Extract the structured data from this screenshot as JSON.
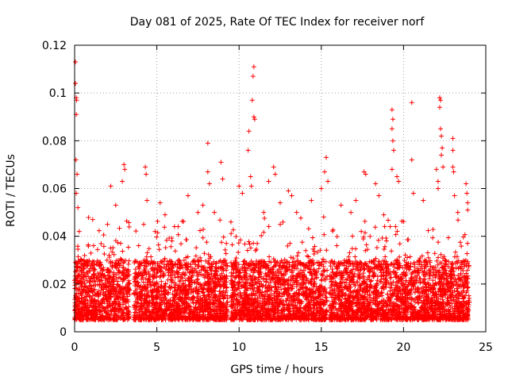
{
  "chart_data": {
    "type": "scatter",
    "title": "Day 081 of 2025, Rate Of TEC Index for receiver norf",
    "xlabel": "GPS time / hours",
    "ylabel": "ROTI / TECUs",
    "xlim": [
      0,
      25
    ],
    "ylim": [
      0,
      0.12
    ],
    "xticks": [
      0,
      5,
      10,
      15,
      20,
      25
    ],
    "yticks": [
      0,
      0.02,
      0.04,
      0.06,
      0.08,
      0.1,
      0.12
    ],
    "xtick_labels": [
      "0",
      "5",
      "10",
      "15",
      "20",
      "25"
    ],
    "ytick_labels": [
      "0",
      "0.02",
      "0.04",
      "0.06",
      "0.08",
      "0.1",
      "0.12"
    ],
    "grid": true,
    "marker": "+",
    "color": "#ff0000",
    "density_profile": {
      "description": "Dense cloud of points mostly between 0.005 and 0.03 TECU/s over data segments, with sparse outliers",
      "data_segments_hours": [
        [
          0.0,
          3.35
        ],
        [
          3.6,
          9.3
        ],
        [
          9.5,
          15.35
        ],
        [
          15.5,
          24.0
        ]
      ],
      "baseline_range": [
        0.005,
        0.03
      ]
    },
    "outliers": [
      {
        "x": 0.05,
        "y": 0.113
      },
      {
        "x": 0.05,
        "y": 0.104
      },
      {
        "x": 0.1,
        "y": 0.098
      },
      {
        "x": 0.12,
        "y": 0.097
      },
      {
        "x": 0.1,
        "y": 0.091
      },
      {
        "x": 0.08,
        "y": 0.072
      },
      {
        "x": 0.15,
        "y": 0.066
      },
      {
        "x": 0.1,
        "y": 0.058
      },
      {
        "x": 0.2,
        "y": 0.052
      },
      {
        "x": 1.1,
        "y": 0.047
      },
      {
        "x": 2.0,
        "y": 0.045
      },
      {
        "x": 2.2,
        "y": 0.061
      },
      {
        "x": 2.5,
        "y": 0.053
      },
      {
        "x": 2.9,
        "y": 0.063
      },
      {
        "x": 3.0,
        "y": 0.07
      },
      {
        "x": 3.05,
        "y": 0.068
      },
      {
        "x": 4.2,
        "y": 0.045
      },
      {
        "x": 4.3,
        "y": 0.069
      },
      {
        "x": 4.35,
        "y": 0.066
      },
      {
        "x": 4.4,
        "y": 0.055
      },
      {
        "x": 5.2,
        "y": 0.054
      },
      {
        "x": 5.5,
        "y": 0.049
      },
      {
        "x": 6.9,
        "y": 0.057
      },
      {
        "x": 7.5,
        "y": 0.05
      },
      {
        "x": 7.8,
        "y": 0.053
      },
      {
        "x": 8.1,
        "y": 0.079
      },
      {
        "x": 8.1,
        "y": 0.067
      },
      {
        "x": 8.2,
        "y": 0.062
      },
      {
        "x": 8.5,
        "y": 0.05
      },
      {
        "x": 8.9,
        "y": 0.071
      },
      {
        "x": 9.0,
        "y": 0.064
      },
      {
        "x": 10.0,
        "y": 0.061
      },
      {
        "x": 10.2,
        "y": 0.058
      },
      {
        "x": 10.6,
        "y": 0.084
      },
      {
        "x": 10.55,
        "y": 0.076
      },
      {
        "x": 10.7,
        "y": 0.065
      },
      {
        "x": 10.75,
        "y": 0.061
      },
      {
        "x": 10.9,
        "y": 0.111
      },
      {
        "x": 10.85,
        "y": 0.107
      },
      {
        "x": 10.8,
        "y": 0.097
      },
      {
        "x": 10.9,
        "y": 0.09
      },
      {
        "x": 10.95,
        "y": 0.089
      },
      {
        "x": 11.5,
        "y": 0.05
      },
      {
        "x": 11.8,
        "y": 0.063
      },
      {
        "x": 12.1,
        "y": 0.069
      },
      {
        "x": 12.2,
        "y": 0.066
      },
      {
        "x": 12.5,
        "y": 0.054
      },
      {
        "x": 13.0,
        "y": 0.059
      },
      {
        "x": 13.2,
        "y": 0.057
      },
      {
        "x": 13.5,
        "y": 0.05
      },
      {
        "x": 14.4,
        "y": 0.055
      },
      {
        "x": 15.0,
        "y": 0.06
      },
      {
        "x": 15.2,
        "y": 0.067
      },
      {
        "x": 15.3,
        "y": 0.073
      },
      {
        "x": 15.4,
        "y": 0.063
      },
      {
        "x": 16.2,
        "y": 0.053
      },
      {
        "x": 16.8,
        "y": 0.05
      },
      {
        "x": 17.1,
        "y": 0.055
      },
      {
        "x": 17.6,
        "y": 0.067
      },
      {
        "x": 17.7,
        "y": 0.066
      },
      {
        "x": 18.3,
        "y": 0.062
      },
      {
        "x": 18.5,
        "y": 0.057
      },
      {
        "x": 18.8,
        "y": 0.049
      },
      {
        "x": 19.3,
        "y": 0.093
      },
      {
        "x": 19.35,
        "y": 0.089
      },
      {
        "x": 19.3,
        "y": 0.085
      },
      {
        "x": 19.35,
        "y": 0.08
      },
      {
        "x": 19.4,
        "y": 0.076
      },
      {
        "x": 19.3,
        "y": 0.068
      },
      {
        "x": 19.6,
        "y": 0.065
      },
      {
        "x": 19.7,
        "y": 0.063
      },
      {
        "x": 20.5,
        "y": 0.096
      },
      {
        "x": 20.5,
        "y": 0.072
      },
      {
        "x": 20.6,
        "y": 0.058
      },
      {
        "x": 21.2,
        "y": 0.055
      },
      {
        "x": 22.0,
        "y": 0.068
      },
      {
        "x": 22.1,
        "y": 0.063
      },
      {
        "x": 22.1,
        "y": 0.06
      },
      {
        "x": 22.2,
        "y": 0.098
      },
      {
        "x": 22.25,
        "y": 0.097
      },
      {
        "x": 22.2,
        "y": 0.094
      },
      {
        "x": 22.25,
        "y": 0.085
      },
      {
        "x": 22.3,
        "y": 0.082
      },
      {
        "x": 22.35,
        "y": 0.077
      },
      {
        "x": 22.3,
        "y": 0.074
      },
      {
        "x": 22.4,
        "y": 0.069
      },
      {
        "x": 23.0,
        "y": 0.081
      },
      {
        "x": 23.0,
        "y": 0.076
      },
      {
        "x": 23.0,
        "y": 0.069
      },
      {
        "x": 23.05,
        "y": 0.067
      },
      {
        "x": 23.1,
        "y": 0.057
      },
      {
        "x": 23.3,
        "y": 0.05
      },
      {
        "x": 23.8,
        "y": 0.062
      },
      {
        "x": 23.85,
        "y": 0.058
      },
      {
        "x": 23.9,
        "y": 0.054
      },
      {
        "x": 23.9,
        "y": 0.051
      }
    ]
  }
}
